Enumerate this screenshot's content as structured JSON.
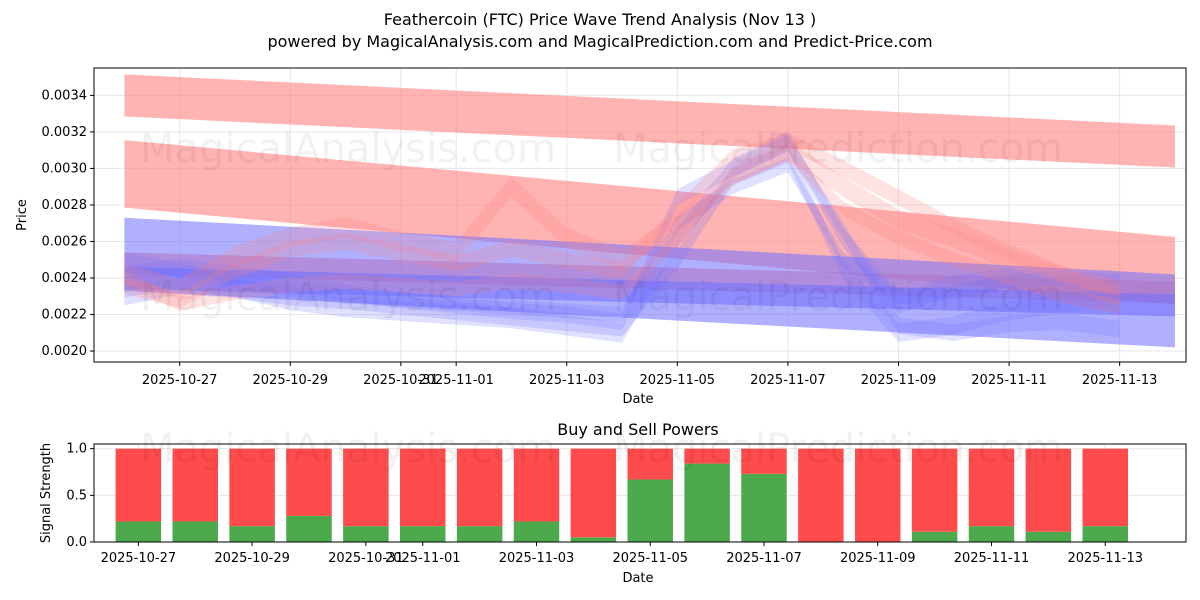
{
  "title_line1": "Feathercoin (FTC) Price Wave Trend Analysis (Nov 13 )",
  "title_line2": "powered by MagicalAnalysis.com and MagicalPrediction.com and Predict-Price.com",
  "watermarks": [
    "MagicalAnalysis.com",
    "MagicalPrediction.com"
  ],
  "colors": {
    "buy": "#4caa4c",
    "sell": "#ff4b4b",
    "red_band": "#ff8080",
    "blue_band": "#7070ff",
    "grid": "#e6e6e6"
  },
  "chart_data": [
    {
      "type": "area",
      "title": "",
      "xlabel": "Date",
      "ylabel": "Price",
      "x_dates": [
        "2025-10-26",
        "2025-10-27",
        "2025-10-28",
        "2025-10-29",
        "2025-10-30",
        "2025-10-31",
        "2025-11-01",
        "2025-11-02",
        "2025-11-03",
        "2025-11-04",
        "2025-11-05",
        "2025-11-06",
        "2025-11-07",
        "2025-11-08",
        "2025-11-09",
        "2025-11-10",
        "2025-11-11",
        "2025-11-12",
        "2025-11-13"
      ],
      "xticks": [
        "2025-10-27",
        "2025-10-29",
        "2025-10-31",
        "2025-11-01",
        "2025-11-03",
        "2025-11-05",
        "2025-11-07",
        "2025-11-09",
        "2025-11-11",
        "2025-11-13"
      ],
      "yticks": [
        "0.0020",
        "0.0022",
        "0.0024",
        "0.0026",
        "0.0028",
        "0.0030",
        "0.0032",
        "0.0034"
      ],
      "ylim": [
        0.00194,
        0.00355
      ],
      "xlim_days": [
        -0.55,
        19.2
      ],
      "grid": true,
      "red_bands": [
        {
          "start_day": 0,
          "end_day": 19,
          "start": 0.0034,
          "end": 0.00312,
          "width": 0.00023
        },
        {
          "start_day": 0,
          "end_day": 19,
          "start": 0.00297,
          "end": 0.00244,
          "width": 0.00037
        },
        {
          "start_day": 0,
          "end_day": 19,
          "start": 0.00248,
          "end": 0.00232,
          "width": 0.00012
        }
      ],
      "blue_bands": [
        {
          "start_day": 0,
          "end_day": 19,
          "start": 0.00253,
          "end": 0.00222,
          "width": 0.0004
        },
        {
          "start_day": 0,
          "end_day": 19,
          "start": 0.0024,
          "end": 0.00225,
          "width": 0.00012
        }
      ],
      "wave_series": [
        {
          "color": "blue",
          "values": [
            0.00235,
            0.0024,
            0.00235,
            0.00228,
            0.00224,
            0.00222,
            0.0022,
            0.00218,
            0.00214,
            0.0021,
            0.00262,
            0.003,
            0.00315,
            0.00262,
            0.00226,
            0.00236,
            0.0024,
            0.00232,
            0.00225
          ],
          "width": 0.00011
        },
        {
          "color": "blue",
          "values": [
            0.00242,
            0.00246,
            0.00242,
            0.00238,
            0.00232,
            0.00228,
            0.00225,
            0.00222,
            0.0022,
            0.00216,
            0.00284,
            0.003,
            0.00314,
            0.00266,
            0.00214,
            0.0021,
            0.00215,
            0.00216,
            0.00212
          ],
          "width": 9e-05
        },
        {
          "color": "blue",
          "values": [
            0.0023,
            0.00236,
            0.00234,
            0.0023,
            0.00228,
            0.00225,
            0.00222,
            0.00219,
            0.00216,
            0.00213,
            0.0025,
            0.00296,
            0.00308,
            0.00244,
            0.0021,
            0.00214,
            0.00222,
            0.00226,
            0.0023
          ],
          "width": 0.0001
        },
        {
          "color": "blue",
          "values": [
            0.0025,
            0.00244,
            0.00238,
            0.00234,
            0.0023,
            0.00228,
            0.00226,
            0.00224,
            0.00222,
            0.0022,
            0.0027,
            0.0029,
            0.00302,
            0.0025,
            0.0023,
            0.00232,
            0.00238,
            0.0024,
            0.00238
          ],
          "width": 8e-05
        },
        {
          "color": "red",
          "values": [
            0.00242,
            0.00234,
            0.00252,
            0.00262,
            0.00268,
            0.0026,
            0.00254,
            0.0029,
            0.00262,
            0.0025,
            0.0027,
            0.00296,
            0.0031,
            0.0029,
            0.00272,
            0.00262,
            0.0025,
            0.0024,
            0.0023
          ],
          "width": 0.00011
        },
        {
          "color": "red",
          "values": [
            0.00236,
            0.00228,
            0.00244,
            0.00256,
            0.0026,
            0.00254,
            0.00248,
            0.00256,
            0.0025,
            0.00244,
            0.00276,
            0.00306,
            0.00315,
            0.003,
            0.00284,
            0.00268,
            0.00254,
            0.00242,
            0.00234
          ],
          "width": 9e-05
        },
        {
          "color": "red",
          "values": [
            0.0024,
            0.00226,
            0.00232,
            0.00236,
            0.00238,
            0.00236,
            0.00234,
            0.00238,
            0.00236,
            0.00232,
            0.00262,
            0.00296,
            0.00308,
            0.00278,
            0.00262,
            0.0025,
            0.0024,
            0.0023,
            0.00224
          ],
          "width": 8e-05
        }
      ]
    },
    {
      "type": "bar",
      "title": "Buy and Sell Powers",
      "xlabel": "Date",
      "ylabel": "Signal Strength",
      "categories": [
        "2025-10-27",
        "2025-10-28",
        "2025-10-29",
        "2025-10-30",
        "2025-10-31",
        "2025-11-01",
        "2025-11-02",
        "2025-11-03",
        "2025-11-04",
        "2025-11-05",
        "2025-11-06",
        "2025-11-07",
        "2025-11-08",
        "2025-11-09",
        "2025-11-10",
        "2025-11-11",
        "2025-11-12",
        "2025-11-13"
      ],
      "xticks": [
        "2025-10-27",
        "2025-10-29",
        "2025-10-31",
        "2025-11-01",
        "2025-11-03",
        "2025-11-05",
        "2025-11-07",
        "2025-11-09",
        "2025-11-11",
        "2025-11-13"
      ],
      "yticks": [
        "0.0",
        "0.5",
        "1.0"
      ],
      "ylim": [
        0,
        1.05
      ],
      "xlim_days": [
        -0.78,
        18.42
      ],
      "series": [
        {
          "name": "Buy",
          "values": [
            0.22,
            0.22,
            0.17,
            0.28,
            0.17,
            0.17,
            0.17,
            0.22,
            0.05,
            0.67,
            0.84,
            0.73,
            0.0,
            0.0,
            0.11,
            0.17,
            0.11,
            0.17
          ]
        },
        {
          "name": "Sell",
          "values": [
            0.78,
            0.78,
            0.83,
            0.72,
            0.83,
            0.83,
            0.83,
            0.78,
            0.95,
            0.33,
            0.16,
            0.27,
            1.0,
            1.0,
            0.89,
            0.83,
            0.89,
            0.83
          ]
        }
      ]
    }
  ]
}
